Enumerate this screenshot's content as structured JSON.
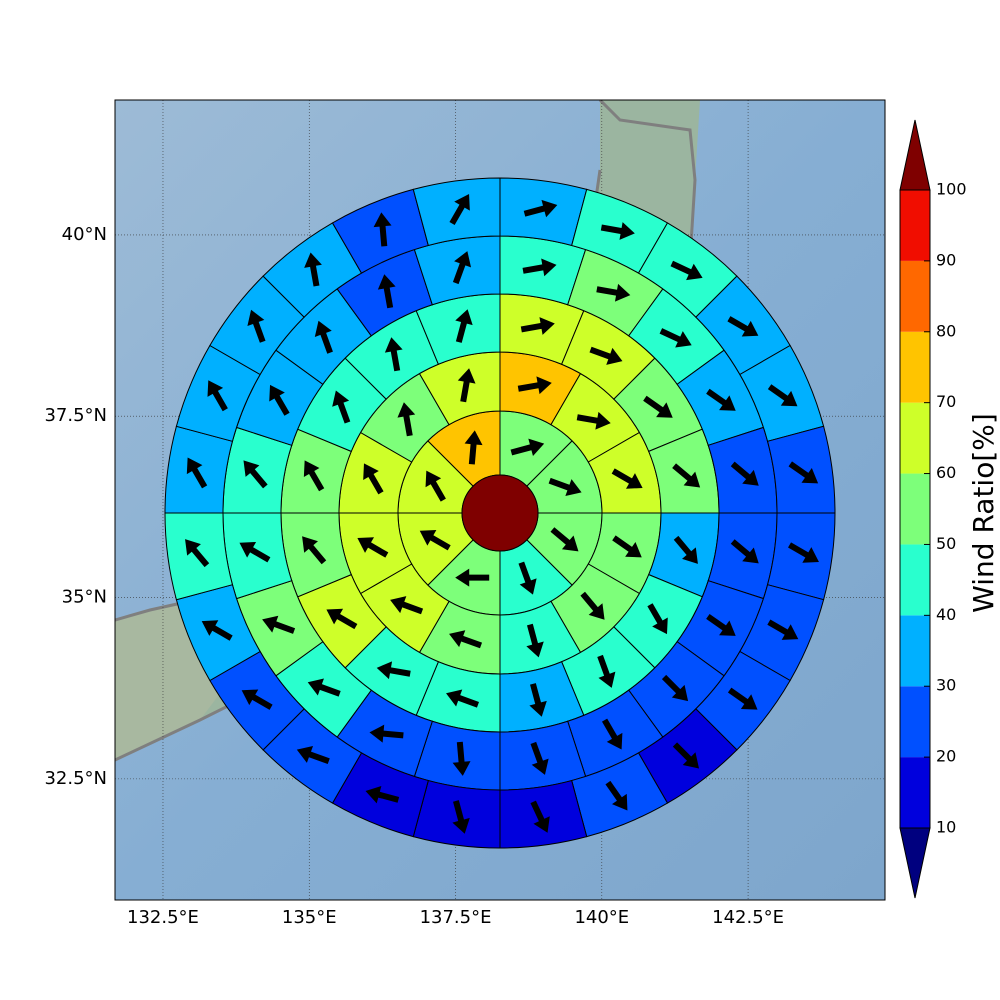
{
  "chart_data": {
    "type": "polar_sector_map",
    "xlim": [
      131.68,
      144.84
    ],
    "ylim": [
      30.83,
      41.86
    ],
    "xticks": [
      {
        "value": 132.5,
        "label": "132.5°E"
      },
      {
        "value": 135,
        "label": "135°E"
      },
      {
        "value": 137.5,
        "label": "137.5°E"
      },
      {
        "value": 140,
        "label": "140°E"
      },
      {
        "value": 142.5,
        "label": "142.5°E"
      }
    ],
    "yticks": [
      {
        "value": 32.5,
        "label": "32.5°N"
      },
      {
        "value": 35,
        "label": "35°N"
      },
      {
        "value": 37.5,
        "label": "37.5°N"
      },
      {
        "value": 40,
        "label": "40°N"
      }
    ],
    "grid": true,
    "center_value": 105,
    "rings": [
      {
        "values": [
          55,
          55,
          55,
          45,
          55,
          65,
          65,
          75
        ],
        "directions": [
          75,
          110,
          130,
          160,
          270,
          300,
          330,
          5
        ]
      },
      {
        "values": [
          75,
          65,
          65,
          55,
          55,
          45,
          55,
          65,
          65,
          65,
          55,
          65
        ],
        "directions": [
          80,
          100,
          120,
          125,
          140,
          165,
          290,
          290,
          300,
          330,
          350,
          10
        ]
      },
      {
        "values": [
          65,
          65,
          55,
          55,
          35,
          45,
          45,
          35,
          45,
          45,
          65,
          55,
          55,
          45,
          45,
          45
        ],
        "directions": [
          80,
          110,
          125,
          130,
          140,
          150,
          160,
          165,
          290,
          280,
          300,
          320,
          330,
          340,
          350,
          15
        ]
      },
      {
        "values": [
          45,
          55,
          45,
          35,
          25,
          25,
          25,
          25,
          25,
          25,
          25,
          25,
          45,
          55,
          45,
          45,
          35,
          35,
          25,
          35
        ],
        "directions": [
          80,
          100,
          115,
          125,
          130,
          130,
          125,
          135,
          150,
          160,
          175,
          275,
          290,
          290,
          300,
          320,
          330,
          340,
          350,
          20
        ]
      },
      {
        "values": [
          35,
          45,
          45,
          35,
          35,
          25,
          25,
          25,
          25,
          15,
          25,
          15,
          15,
          15,
          25,
          25,
          35,
          45,
          35,
          35,
          35,
          35,
          25,
          35
        ],
        "directions": [
          75,
          100,
          115,
          120,
          125,
          125,
          120,
          120,
          125,
          135,
          145,
          155,
          165,
          285,
          290,
          300,
          300,
          320,
          330,
          330,
          340,
          350,
          355,
          30
        ]
      }
    ],
    "colorbar": {
      "label": "Wind Ratio[%]",
      "levels": [
        10,
        20,
        30,
        40,
        50,
        60,
        70,
        80,
        90,
        100
      ],
      "colors": [
        "#0000dd",
        "#0050ff",
        "#00b0ff",
        "#29ffce",
        "#7dff7a",
        "#ceff29",
        "#ffc400",
        "#ff6800",
        "#f10d00"
      ],
      "under_color": "#00007f",
      "over_color": "#7f0000",
      "ticks": [
        10,
        20,
        30,
        40,
        50,
        60,
        70,
        80,
        90,
        100
      ]
    }
  }
}
